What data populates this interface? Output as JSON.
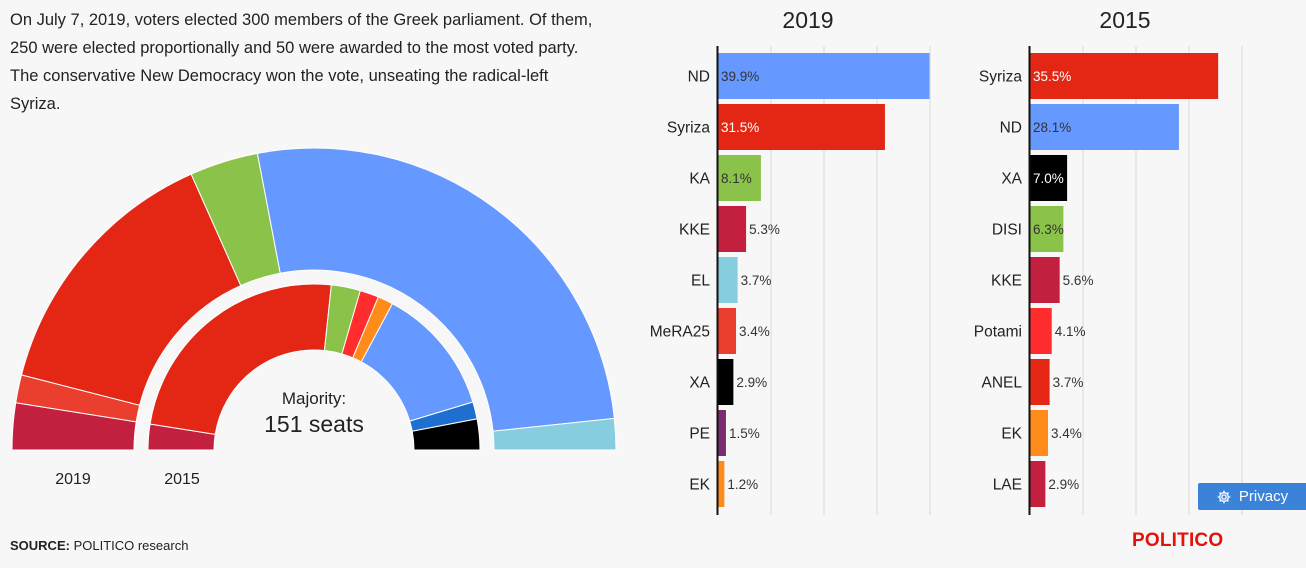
{
  "intro": {
    "text": "On July 7, 2019, voters elected 300 members of the Greek parliament. Of them, 250 were elected proportionally and 50 were awarded to the most voted party. The conservative New Democracy won the vote, unseating the radical-left Syriza."
  },
  "hemicycle": {
    "majority_label": "Majority:",
    "majority_value": "151 seats",
    "outer_label": "2019",
    "inner_label": "2015",
    "outer_segments": [
      {
        "party": "KKE",
        "seats": 15,
        "color": "#c3203f"
      },
      {
        "party": "MeRA25",
        "seats": 9,
        "color": "#ea3f2e"
      },
      {
        "party": "Syriza",
        "seats": 86,
        "color": "#e32714"
      },
      {
        "party": "KA",
        "seats": 22,
        "color": "#8bc34a"
      },
      {
        "party": "ND",
        "seats": 158,
        "color": "#6699ff"
      },
      {
        "party": "EL",
        "seats": 10,
        "color": "#87cde0"
      }
    ],
    "inner_segments": [
      {
        "party": "KKE",
        "seats": 15,
        "color": "#c3203f"
      },
      {
        "party": "Syriza",
        "seats": 145,
        "color": "#e32714"
      },
      {
        "party": "DISI",
        "seats": 17,
        "color": "#8bc34a"
      },
      {
        "party": "Potami",
        "seats": 11,
        "color": "#ff2d2d"
      },
      {
        "party": "EK",
        "seats": 9,
        "color": "#ff8c1a"
      },
      {
        "party": "ND",
        "seats": 75,
        "color": "#6699ff"
      },
      {
        "party": "ANEL",
        "seats": 10,
        "color": "#1f6fd1"
      },
      {
        "party": "XA",
        "seats": 18,
        "color": "#000000"
      }
    ]
  },
  "chart_data": [
    {
      "type": "bar",
      "title": "2019",
      "categories": [
        "ND",
        "Syriza",
        "KA",
        "KKE",
        "EL",
        "MeRA25",
        "XA",
        "PE",
        "EK"
      ],
      "values": [
        39.9,
        31.5,
        8.1,
        5.3,
        3.7,
        3.4,
        2.9,
        1.5,
        1.2
      ],
      "labels": [
        "39.9%",
        "31.5%",
        "8.1%",
        "5.3%",
        "3.7%",
        "3.4%",
        "2.9%",
        "1.5%",
        "1.2%"
      ],
      "colors": [
        "#6699ff",
        "#e32714",
        "#8bc34a",
        "#c3203f",
        "#87cde0",
        "#ea3f2e",
        "#000000",
        "#7b2c6e",
        "#ff8c1a"
      ],
      "xlim": [
        0,
        40
      ],
      "grid": true,
      "inside_threshold": 7
    },
    {
      "type": "bar",
      "title": "2015",
      "categories": [
        "Syriza",
        "ND",
        "XA",
        "DISI",
        "KKE",
        "Potami",
        "ANEL",
        "EK",
        "LAE"
      ],
      "values": [
        35.5,
        28.1,
        7.0,
        6.3,
        5.6,
        4.1,
        3.7,
        3.4,
        2.9
      ],
      "labels": [
        "35.5%",
        "28.1%",
        "7.0%",
        "6.3%",
        "5.6%",
        "4.1%",
        "3.7%",
        "3.4%",
        "2.9%"
      ],
      "colors": [
        "#e32714",
        "#6699ff",
        "#000000",
        "#8bc34a",
        "#c3203f",
        "#ff2d2d",
        "#e32714",
        "#ff8c1a",
        "#c3203f"
      ],
      "xlim": [
        0,
        40
      ],
      "grid": true,
      "inside_threshold": 6
    }
  ],
  "footer": {
    "source_label": "SOURCE:",
    "source_text": " POLITICO research",
    "brand": "POLITICO",
    "privacy_label": "Privacy"
  }
}
